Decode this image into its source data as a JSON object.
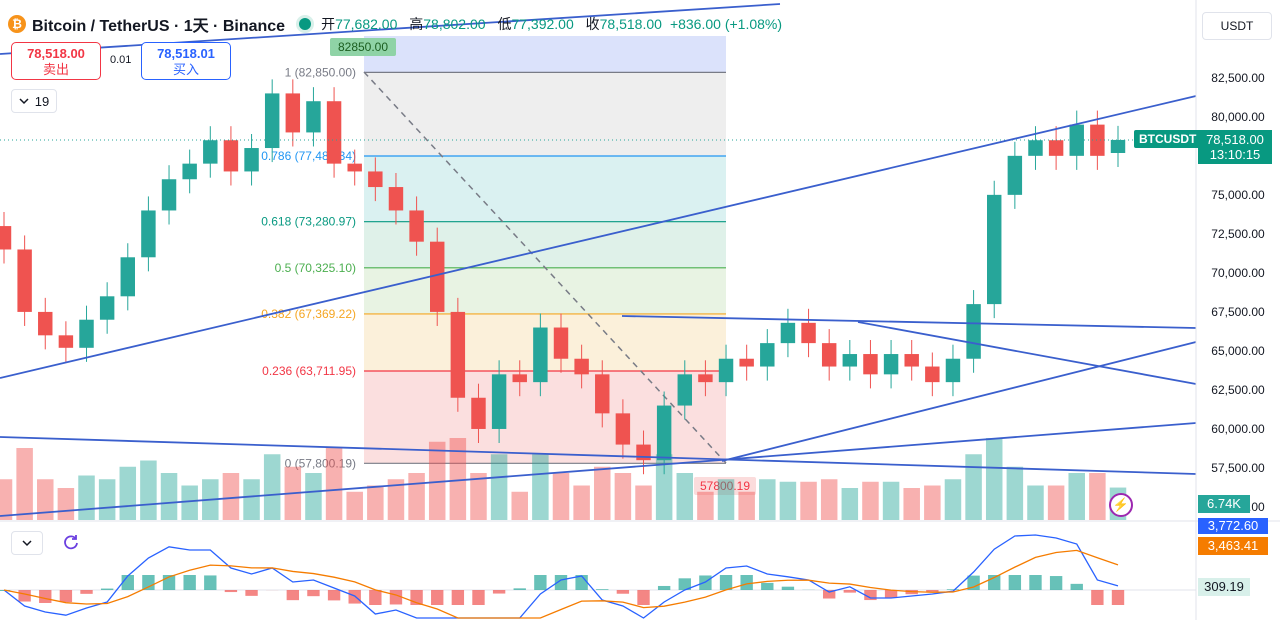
{
  "header": {
    "coin_symbol": "₿",
    "title": "Bitcoin / TetherUS · 1天 · Binance",
    "ohlc": [
      {
        "key": "开",
        "value": "77,682.00"
      },
      {
        "key": "高",
        "value": "78,802.00"
      },
      {
        "key": "低",
        "value": "77,392.00"
      },
      {
        "key": "收",
        "value": "78,518.00"
      }
    ],
    "change": "+836.00 (+1.08%)"
  },
  "trade": {
    "sell_price": "78,518.00",
    "sell_label": "卖出",
    "spread": "0.01",
    "buy_price": "78,518.01",
    "buy_label": "买入"
  },
  "indicator_toggle": {
    "count": "19",
    "icon": "chevron-down-icon"
  },
  "currency_selector": "USDT",
  "price_axis": {
    "ticks": [
      "82,500.00",
      "80,000.00",
      "75,000.00",
      "72,500.00",
      "70,000.00",
      "67,500.00",
      "65,000.00",
      "62,500.00",
      "60,000.00",
      "57,500.00",
      "55,000.00"
    ]
  },
  "last_price": {
    "symbol": "BTCUSDT",
    "price": "78,518.00",
    "countdown": "13:10:15"
  },
  "volume_badge": "6.74K",
  "macd": {
    "line_value": "3,772.60",
    "signal_value": "3,463.41",
    "hist_value": "309.19"
  },
  "fib": {
    "top_marker": "82850.00",
    "bottom_marker": "57800.19",
    "levels": [
      {
        "ratio": "1",
        "price": "82,850.00",
        "color": "#787b86"
      },
      {
        "ratio": "0.786",
        "price": "77,489.34",
        "color": "#2196f3"
      },
      {
        "ratio": "0.618",
        "price": "73,280.97",
        "color": "#089981"
      },
      {
        "ratio": "0.5",
        "price": "70,325.10",
        "color": "#4caf50"
      },
      {
        "ratio": "0.382",
        "price": "67,369.22",
        "color": "#f5a623"
      },
      {
        "ratio": "0.236",
        "price": "63,711.95",
        "color": "#f23645"
      },
      {
        "ratio": "0",
        "price": "57,800.19",
        "color": "#787b86"
      }
    ]
  },
  "colors": {
    "up": "#26a69a",
    "down": "#ef5350",
    "trend": "#3a5fcd",
    "macd": "#2962ff",
    "signal": "#f57c00"
  },
  "chart_data": {
    "type": "candlestick",
    "series": [
      {
        "name": "BTCUSDT",
        "values": [
          {
            "o": 73000,
            "c": 71500
          },
          {
            "o": 71500,
            "c": 67500
          },
          {
            "o": 67500,
            "c": 66000
          },
          {
            "o": 66000,
            "c": 65200
          },
          {
            "o": 65200,
            "c": 67000
          },
          {
            "o": 67000,
            "c": 68500
          },
          {
            "o": 68500,
            "c": 71000
          },
          {
            "o": 71000,
            "c": 74000
          },
          {
            "o": 74000,
            "c": 76000
          },
          {
            "o": 76000,
            "c": 77000
          },
          {
            "o": 77000,
            "c": 78500
          },
          {
            "o": 78500,
            "c": 76500
          },
          {
            "o": 76500,
            "c": 78000
          },
          {
            "o": 78000,
            "c": 81500
          },
          {
            "o": 81500,
            "c": 79000
          },
          {
            "o": 79000,
            "c": 81000
          },
          {
            "o": 81000,
            "c": 77000
          },
          {
            "o": 77000,
            "c": 76500
          },
          {
            "o": 76500,
            "c": 75500
          },
          {
            "o": 75500,
            "c": 74000
          },
          {
            "o": 74000,
            "c": 72000
          },
          {
            "o": 72000,
            "c": 67500
          },
          {
            "o": 67500,
            "c": 62000
          },
          {
            "o": 62000,
            "c": 60000
          },
          {
            "o": 60000,
            "c": 63500
          },
          {
            "o": 63500,
            "c": 63000
          },
          {
            "o": 63000,
            "c": 66500
          },
          {
            "o": 66500,
            "c": 64500
          },
          {
            "o": 64500,
            "c": 63500
          },
          {
            "o": 63500,
            "c": 61000
          },
          {
            "o": 61000,
            "c": 59000
          },
          {
            "o": 59000,
            "c": 58000
          },
          {
            "o": 58000,
            "c": 61500
          },
          {
            "o": 61500,
            "c": 63500
          },
          {
            "o": 63500,
            "c": 63000
          },
          {
            "o": 63000,
            "c": 64500
          },
          {
            "o": 64500,
            "c": 64000
          },
          {
            "o": 64000,
            "c": 65500
          },
          {
            "o": 65500,
            "c": 66800
          },
          {
            "o": 66800,
            "c": 65500
          },
          {
            "o": 65500,
            "c": 64000
          },
          {
            "o": 64000,
            "c": 64800
          },
          {
            "o": 64800,
            "c": 63500
          },
          {
            "o": 63500,
            "c": 64800
          },
          {
            "o": 64800,
            "c": 64000
          },
          {
            "o": 64000,
            "c": 63000
          },
          {
            "o": 63000,
            "c": 64500
          },
          {
            "o": 64500,
            "c": 68000
          },
          {
            "o": 68000,
            "c": 75000
          },
          {
            "o": 75000,
            "c": 77500
          },
          {
            "o": 77500,
            "c": 78500
          },
          {
            "o": 78500,
            "c": 77500
          },
          {
            "o": 77500,
            "c": 79500
          },
          {
            "o": 79500,
            "c": 77500
          },
          {
            "o": 77682,
            "c": 78518
          }
        ]
      }
    ],
    "ylim": [
      55000,
      83000
    ]
  }
}
